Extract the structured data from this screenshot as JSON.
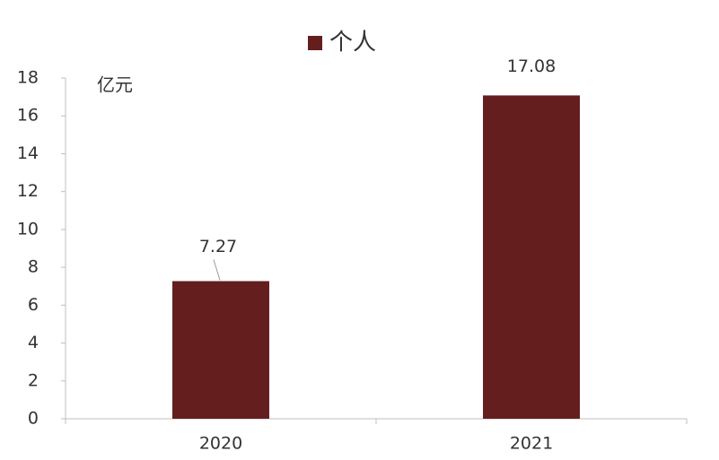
{
  "chart_data": {
    "type": "bar",
    "legend": "个人",
    "y_axis_label": "亿元",
    "categories": [
      "2020",
      "2021"
    ],
    "values": [
      7.27,
      17.08
    ],
    "color": "#641e1e",
    "ylim": [
      0,
      18
    ],
    "yticks": [
      0,
      2,
      4,
      6,
      8,
      10,
      12,
      14,
      16,
      18
    ]
  }
}
